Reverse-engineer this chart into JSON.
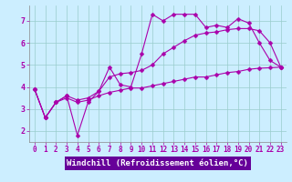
{
  "title": "",
  "xlabel": "Windchill (Refroidissement éolien,°C)",
  "ylabel": "",
  "xlim": [
    -0.5,
    23.5
  ],
  "ylim": [
    1.5,
    7.7
  ],
  "xticks": [
    0,
    1,
    2,
    3,
    4,
    5,
    6,
    7,
    8,
    9,
    10,
    11,
    12,
    13,
    14,
    15,
    16,
    17,
    18,
    19,
    20,
    21,
    22,
    23
  ],
  "yticks": [
    2,
    3,
    4,
    5,
    6,
    7
  ],
  "background_color": "#cceeff",
  "grid_color": "#99cccc",
  "line_color": "#aa00aa",
  "xlabel_bg": "#660099",
  "line1_y": [
    3.9,
    2.6,
    3.3,
    3.6,
    1.8,
    3.3,
    3.8,
    4.9,
    4.1,
    4.0,
    5.5,
    7.3,
    7.0,
    7.3,
    7.3,
    7.3,
    6.7,
    6.8,
    6.7,
    7.1,
    6.9,
    6.0,
    5.2,
    4.9
  ],
  "line2_y": [
    3.9,
    2.6,
    3.3,
    3.6,
    3.4,
    3.5,
    3.8,
    4.45,
    4.6,
    4.65,
    4.75,
    5.0,
    5.5,
    5.8,
    6.1,
    6.35,
    6.45,
    6.5,
    6.6,
    6.65,
    6.65,
    6.55,
    6.0,
    4.9
  ],
  "line3_y": [
    3.9,
    2.6,
    3.3,
    3.5,
    3.3,
    3.4,
    3.6,
    3.75,
    3.85,
    3.95,
    3.95,
    4.05,
    4.15,
    4.25,
    4.35,
    4.45,
    4.45,
    4.55,
    4.65,
    4.7,
    4.8,
    4.85,
    4.87,
    4.9
  ],
  "marker_size": 2.5,
  "line_width": 0.8,
  "font_size_label": 6.5,
  "font_size_tick": 5.5
}
